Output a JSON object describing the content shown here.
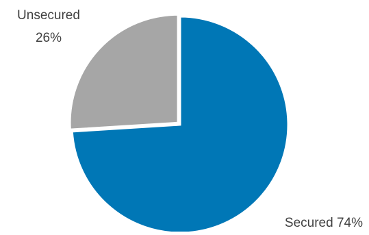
{
  "chart_data": {
    "type": "pie",
    "title": "",
    "legend": "none",
    "start_angle_deg": 0,
    "direction": "clockwise",
    "slices": [
      {
        "key": "secured",
        "name": "Secured",
        "value": 74,
        "label_text": "Secured 74%",
        "color": "#0077B6",
        "exploded": false
      },
      {
        "key": "unsecured",
        "name": "Unsecured",
        "value": 26,
        "label_lines": [
          "Unsecured",
          "26%"
        ],
        "color": "#A6A6A6",
        "exploded": true
      }
    ]
  }
}
